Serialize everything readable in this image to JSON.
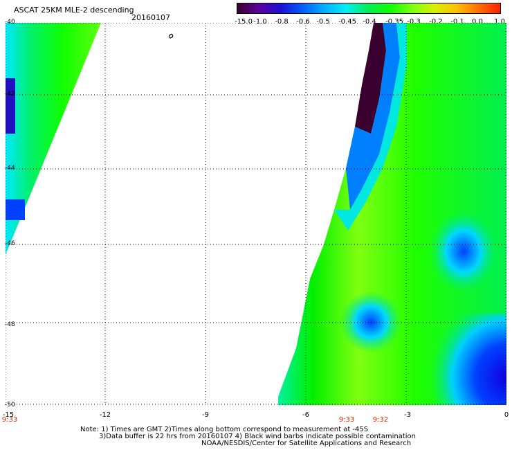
{
  "header": {
    "title": "ASCAT 25KM MLE-2 descending",
    "date": "20160107"
  },
  "colorbar": {
    "labels": [
      "-15.0",
      "-1.0",
      "-0.8",
      "-0.6",
      "-0.5",
      "-0.45",
      "-0.4",
      "-0.35",
      "-0.3",
      "-0.2",
      "-0.1",
      "0.0",
      "1.0"
    ],
    "colors": [
      "#3a0030",
      "#5a00a0",
      "#1a10d8",
      "#0060ff",
      "#00b0ff",
      "#00f0f0",
      "#00ee50",
      "#10ff00",
      "#80ff10",
      "#d8f000",
      "#ffc000",
      "#ff7000",
      "#ff2000"
    ]
  },
  "axes": {
    "y_labels": [
      "-40",
      "-42",
      "-44",
      "-46",
      "-48",
      "-50"
    ],
    "x_labels": [
      "-15",
      "-12",
      "-9",
      "-6",
      "-3",
      "0"
    ],
    "x_range": [
      -15,
      0
    ],
    "y_range": [
      -40,
      -50
    ]
  },
  "time_labels": [
    "9:33",
    "9:33",
    "9:32"
  ],
  "notes": [
    "Note: 1) Times are GMT 2)Times along bottom correspond to measurement at -45S",
    "3)Data buffer is 22 hrs from 20160107 4) Black wind barbs indicate possible contamination",
    "NOAA/NESDIS/Center for Satellite Applications and Research"
  ]
}
